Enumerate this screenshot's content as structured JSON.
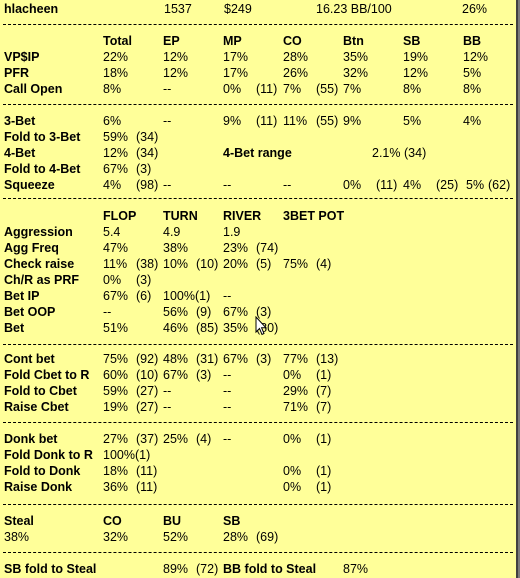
{
  "header": {
    "player": "hlacheen",
    "hands": "1537",
    "winnings": "$249",
    "winrate": "16.23 BB/100",
    "pct": "26%"
  },
  "preflop": {
    "columns": [
      "Total",
      "EP",
      "MP",
      "CO",
      "Btn",
      "SB",
      "BB"
    ],
    "rows": [
      {
        "label": "VP$IP",
        "cells": [
          "22%",
          "12%",
          "17%",
          "28%",
          "35%",
          "19%",
          "12%"
        ]
      },
      {
        "label": "PFR",
        "cells": [
          "18%",
          "12%",
          "17%",
          "26%",
          "32%",
          "12%",
          "5%"
        ]
      },
      {
        "label": "Call Open",
        "cells": [
          "8%",
          "--",
          "0%",
          "(11)",
          "7%",
          "(55)",
          "7%",
          "8%",
          "8%"
        ]
      }
    ]
  },
  "threebet": {
    "rows": [
      {
        "label": "3-Bet",
        "cells": [
          "6%",
          "--",
          "9%",
          "(11)",
          "11%",
          "(55)",
          "9%",
          "5%",
          "4%"
        ]
      },
      {
        "label": "Fold to 3-Bet",
        "cells": [
          "59%",
          "(34)"
        ]
      },
      {
        "label": "4-Bet",
        "cells": [
          "12%",
          "(34)"
        ],
        "range_label": "4-Bet range",
        "range_value": "2.1%",
        "range_count": "(34)"
      },
      {
        "label": "Fold to 4-Bet",
        "cells": [
          "67%",
          "(3)"
        ]
      },
      {
        "label": "Squeeze",
        "cells": [
          "4%",
          "(98)",
          "--",
          "--",
          "--",
          "0%",
          "(11)",
          "4%",
          "(25)",
          "5%",
          "(62)"
        ]
      }
    ]
  },
  "postflop": {
    "columns": [
      "FLOP",
      "TURN",
      "RIVER",
      "3BET POT"
    ],
    "rows": [
      {
        "label": "Aggression",
        "cells": [
          "5.4",
          "4.9",
          "1.9"
        ]
      },
      {
        "label": "Agg Freq",
        "cells": [
          "47%",
          "38%",
          "23%",
          "(74)"
        ]
      },
      {
        "label": "Check raise",
        "cells": [
          "11%",
          "(38)",
          "10%",
          "(10)",
          "20%",
          "(5)",
          "75%",
          "(4)"
        ]
      },
      {
        "label": "Ch/R as PRF",
        "cells": [
          "0%",
          "(3)"
        ]
      },
      {
        "label": "Bet IP",
        "cells": [
          "67%",
          "(6)",
          "100%(1)",
          "--"
        ]
      },
      {
        "label": "Bet OOP",
        "cells": [
          "--",
          "56%",
          "(9)",
          "67%",
          "(3)"
        ]
      },
      {
        "label": "Bet",
        "cells": [
          "51%",
          "46%",
          "(85)",
          "35%",
          "(80)"
        ]
      }
    ]
  },
  "cbet": {
    "rows": [
      {
        "label": "Cont bet",
        "cells": [
          "75%",
          "(92)",
          "48%",
          "(31)",
          "67%",
          "(3)",
          "77%",
          "(13)"
        ]
      },
      {
        "label": "Fold Cbet to R",
        "cells": [
          "60%",
          "(10)",
          "67%",
          "(3)",
          "--",
          "0%",
          "(1)"
        ]
      },
      {
        "label": "Fold to Cbet",
        "cells": [
          "59%",
          "(27)",
          "--",
          "--",
          "29%",
          "(7)"
        ]
      },
      {
        "label": "Raise Cbet",
        "cells": [
          "19%",
          "(27)",
          "--",
          "--",
          "71%",
          "(7)"
        ]
      }
    ]
  },
  "donk": {
    "rows": [
      {
        "label": "Donk bet",
        "cells": [
          "27%",
          "(37)",
          "25%",
          "(4)",
          "--",
          "0%",
          "(1)"
        ]
      },
      {
        "label": "Fold Donk to R",
        "cells": [
          "100%(1)"
        ]
      },
      {
        "label": "Fold to Donk",
        "cells": [
          "18%",
          "(11)",
          "0%",
          "(1)"
        ]
      },
      {
        "label": "Raise Donk",
        "cells": [
          "36%",
          "(11)",
          "0%",
          "(1)"
        ]
      }
    ]
  },
  "steal": {
    "label": "Steal",
    "total": "38%",
    "columns": [
      "CO",
      "BU",
      "SB"
    ],
    "values": [
      "32%",
      "52%",
      "28%",
      "(69)"
    ]
  },
  "footer": {
    "sb_label": "SB fold to Steal",
    "sb_value": "89%",
    "sb_count": "(72)",
    "bb_label": "BB fold to Steal",
    "bb_value": "87%"
  },
  "icons": {
    "cursor": "mouse-pointer-icon"
  }
}
